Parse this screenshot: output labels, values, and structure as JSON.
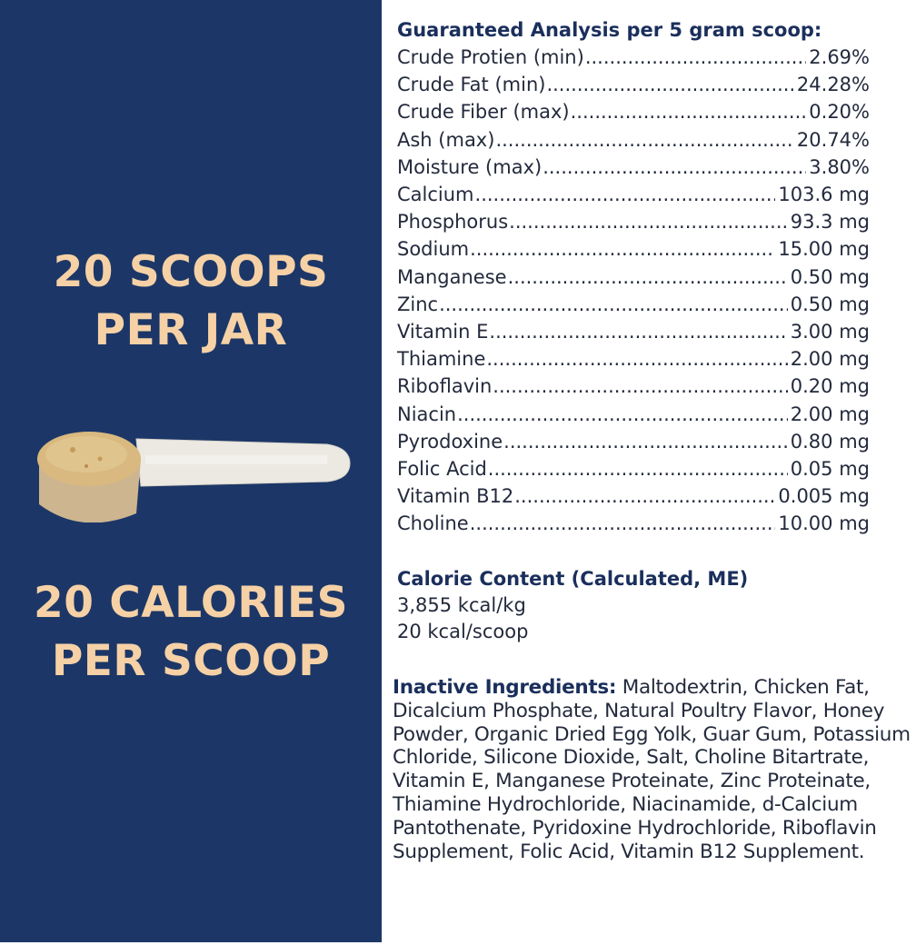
{
  "left_panel": {
    "scoops_line1": "20 SCOOPS",
    "scoops_line2": "PER JAR",
    "calories_line1": "20 CALORIES",
    "calories_line2": "PER SCOOP",
    "background_color": "#1c3767",
    "text_color": "#f6d1a6"
  },
  "analysis": {
    "heading": "Guaranteed Analysis per 5 gram scoop:",
    "rows": [
      {
        "label": "Crude Protien (min)",
        "value": "2.69%"
      },
      {
        "label": "Crude Fat (min)",
        "value": "24.28%"
      },
      {
        "label": "Crude Fiber (max)",
        "value": "0.20%"
      },
      {
        "label": "Ash (max)",
        "value": "20.74%"
      },
      {
        "label": "Moisture (max)",
        "value": "3.80%"
      },
      {
        "label": "Calcium",
        "value": "103.6 mg"
      },
      {
        "label": "Phosphorus",
        "value": "93.3 mg"
      },
      {
        "label": "Sodium",
        "value": "15.00 mg"
      },
      {
        "label": "Manganese",
        "value": "0.50 mg"
      },
      {
        "label": "Zinc",
        "value": "0.50 mg"
      },
      {
        "label": "Vitamin E",
        "value": "3.00 mg"
      },
      {
        "label": "Thiamine",
        "value": "2.00 mg"
      },
      {
        "label": "Riboflavin",
        "value": "0.20 mg"
      },
      {
        "label": "Niacin",
        "value": "2.00 mg"
      },
      {
        "label": "Pyrodoxine",
        "value": "0.80 mg"
      },
      {
        "label": "Folic Acid",
        "value": "0.05 mg"
      },
      {
        "label": "Vitamin B12",
        "value": "0.005 mg"
      },
      {
        "label": "Choline",
        "value": "10.00 mg"
      }
    ]
  },
  "calorie": {
    "heading": "Calorie Content (Calculated, ME)",
    "per_kg": "3,855 kcal/kg",
    "per_scoop": "20 kcal/scoop"
  },
  "inactive": {
    "label": "Inactive Ingredients:",
    "text": "Maltodextrin, Chicken Fat, Dicalcium Phosphate, Natural Poultry Flavor, Honey Powder, Organic Dried Egg Yolk, Guar Gum, Potassium Chloride, Silicone Dioxide, Salt, Choline Bitartrate, Vitamin E, Manganese Proteinate, Zinc Proteinate, Thiamine Hydrochloride, Niacinamide, d-Calcium Pantothenate, Pyridoxine Hydrochloride, Riboflavin Supplement, Folic Acid, Vitamin B12 Supplement."
  }
}
